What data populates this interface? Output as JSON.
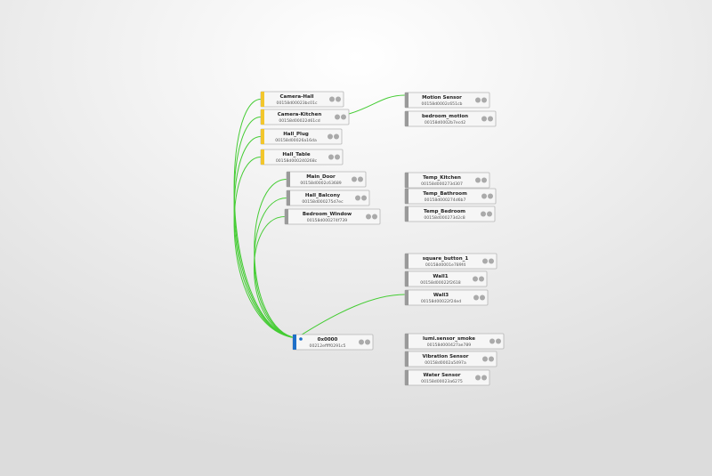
{
  "nodes": [
    {
      "label": "Camera-Hall",
      "id": "00158d00023bc01c"
    },
    {
      "label": "Camera-Kitchen",
      "id": "00158d00022d61cd"
    },
    {
      "label": "Hall_Plug",
      "id": "00158d00026a16da"
    },
    {
      "label": "Hall_Table",
      "id": "00158d000240268c"
    },
    {
      "label": "Main_Door",
      "id": "00158d0002c63689"
    },
    {
      "label": "Hall_Balcony",
      "id": "00158d000275d7ec"
    },
    {
      "label": "Bedroom_Window",
      "id": "00158d000274f739"
    },
    {
      "label": "0x0000",
      "id": "00212effff0291c5"
    },
    {
      "label": "Motion Sensor",
      "id": "00158d0002c651cb"
    },
    {
      "label": "bedroom_motion",
      "id": "00158d0002b7ecd2"
    },
    {
      "label": "Temp_Kitchen",
      "id": "00158d000273d307"
    },
    {
      "label": "Temp_Bathroom",
      "id": "00158d000274d6b7"
    },
    {
      "label": "Temp_Bedroom",
      "id": "00158d000273d2c8"
    },
    {
      "label": "square_button_1",
      "id": "00158d0001e789f4"
    },
    {
      "label": "Wall1",
      "id": "00158d00022f2618"
    },
    {
      "label": "Wall3",
      "id": "00158d00022f24ed"
    },
    {
      "label": "lumi.sensor_smoke",
      "id": "00158d000427ae789"
    },
    {
      "label": "Vibration Sensor",
      "id": "00158d0002a5497a"
    },
    {
      "label": "Water Sensor",
      "id": "00158d00023a6275"
    }
  ]
}
